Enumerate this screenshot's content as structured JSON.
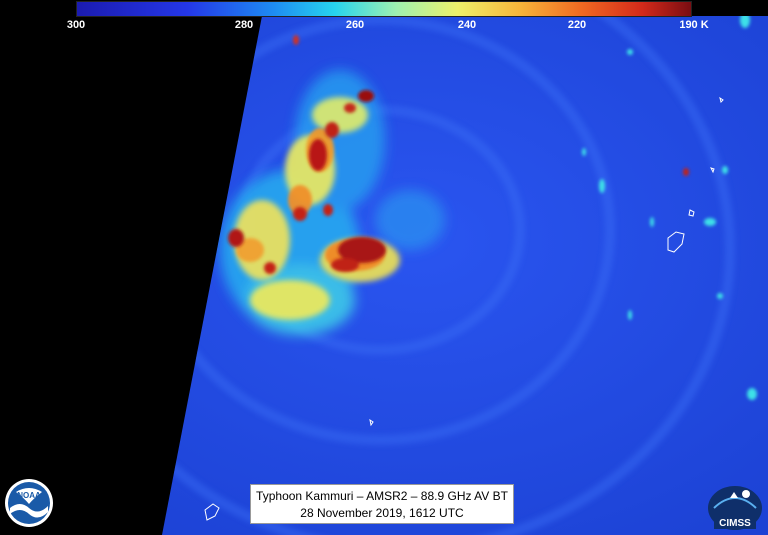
{
  "colorbar": {
    "ticks": [
      "300",
      "280",
      "260",
      "240",
      "220",
      "190 K"
    ]
  },
  "caption": {
    "line1": "Typhoon Kammuri – AMSR2 – 88.9 GHz AV BT",
    "line2": "28 November 2019, 1612 UTC"
  },
  "logos": {
    "left": "NOAA",
    "right": "CIMSS"
  }
}
